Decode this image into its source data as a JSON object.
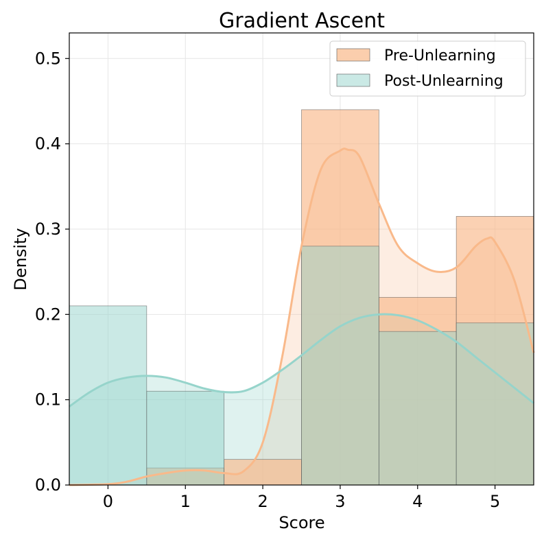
{
  "chart_data": {
    "type": "bar",
    "title": "Gradient Ascent",
    "xlabel": "Score",
    "ylabel": "Density",
    "xlim": [
      -0.5,
      5.5
    ],
    "ylim": [
      0,
      0.53
    ],
    "x_ticks": [
      "0",
      "1",
      "2",
      "3",
      "4",
      "5"
    ],
    "y_ticks": [
      "0.0",
      "0.1",
      "0.2",
      "0.3",
      "0.4",
      "0.5"
    ],
    "grid": true,
    "legend_position": "top-right",
    "bin_edges": [
      -0.5,
      0.5,
      1.5,
      2.5,
      3.5,
      4.5,
      5.5
    ],
    "series": [
      {
        "name": "Pre-Unlearning",
        "color": "#f9b98a",
        "values": [
          0.0,
          0.02,
          0.03,
          0.44,
          0.22,
          0.315
        ],
        "kde": {
          "x": [
            -0.5,
            0.0,
            0.25,
            0.5,
            0.75,
            1.0,
            1.25,
            1.5,
            1.75,
            2.0,
            2.25,
            2.5,
            2.75,
            3.0,
            3.1,
            3.25,
            3.5,
            3.75,
            4.0,
            4.25,
            4.5,
            4.75,
            4.9,
            5.0,
            5.25,
            5.5
          ],
          "y": [
            0.0,
            0.001,
            0.004,
            0.01,
            0.014,
            0.017,
            0.017,
            0.014,
            0.016,
            0.05,
            0.15,
            0.28,
            0.37,
            0.392,
            0.393,
            0.385,
            0.33,
            0.28,
            0.26,
            0.25,
            0.255,
            0.28,
            0.289,
            0.285,
            0.24,
            0.155
          ]
        }
      },
      {
        "name": "Post-Unlearning",
        "color": "#96d4cb",
        "values": [
          0.21,
          0.11,
          0.0,
          0.28,
          0.18,
          0.19
        ],
        "kde": {
          "x": [
            -0.5,
            -0.25,
            0.0,
            0.25,
            0.5,
            0.75,
            1.0,
            1.25,
            1.5,
            1.75,
            2.0,
            2.25,
            2.5,
            2.75,
            3.0,
            3.25,
            3.5,
            3.75,
            4.0,
            4.25,
            4.5,
            4.75,
            5.0,
            5.25,
            5.5
          ],
          "y": [
            0.092,
            0.108,
            0.12,
            0.126,
            0.128,
            0.126,
            0.12,
            0.113,
            0.109,
            0.11,
            0.12,
            0.135,
            0.152,
            0.17,
            0.186,
            0.196,
            0.2,
            0.199,
            0.193,
            0.182,
            0.168,
            0.15,
            0.132,
            0.114,
            0.096
          ]
        }
      }
    ]
  }
}
